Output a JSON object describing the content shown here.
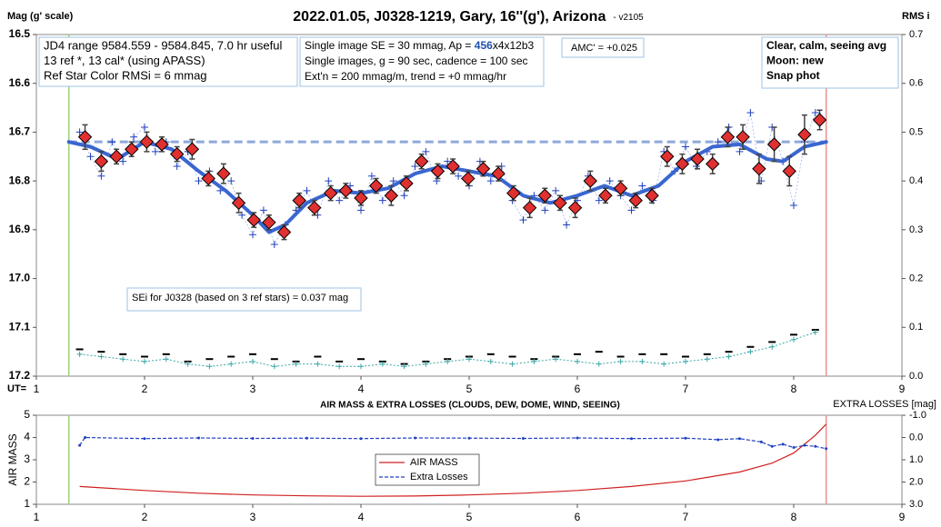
{
  "chart_data": [
    {
      "type": "lightcurve",
      "title": "2022.01.05, J0328-1219, Gary, 16''(g'), Arizona",
      "subtitle": "- v2105",
      "xlabel": "UT=",
      "ylabel": "Mag (g' scale)",
      "y2label": "RMS i",
      "xlim": [
        1,
        9
      ],
      "xticks": [
        1,
        2,
        3,
        4,
        5,
        6,
        7,
        8,
        9
      ],
      "ylim": [
        17.2,
        16.5
      ],
      "yticks": [
        16.5,
        16.6,
        16.7,
        16.8,
        16.9,
        {
          "value": 17,
          "label": "17.0"
        },
        17.1,
        17.2
      ],
      "y2lim": [
        0,
        0.7
      ],
      "y2ticks": [
        {
          "value": 0,
          "label": "0.0"
        },
        0.1,
        0.2,
        0.3,
        0.4,
        0.5,
        0.6,
        0.7
      ],
      "start_ut": 1.3,
      "end_ut": 8.3,
      "reference_level": 16.72,
      "annotations": [
        {
          "lines": [
            "JD4 range 9584.559 - 9584.845, 7.0 hr useful",
            "13 ref *, 13 cal* (using APASS)",
            "Ref Star Color RMSi = 6 mmag"
          ]
        },
        {
          "lines": [
            "Single image SE = 30 mmag, Ap = ",
            "456",
            "x4x12b3",
            "Single images, g = 90 sec, cadence = 100 sec",
            "Ext'n = 200 mmag/m, trend = +0 mmag/hr"
          ]
        },
        {
          "lines": [
            "AMC' = +0.025"
          ]
        },
        {
          "lines": [
            "Clear, calm, seeing avg",
            "Moon: new",
            "Snap phot"
          ]
        },
        {
          "lines": [
            "SEi for J0328 (based on 3 ref stars) = 0.037 mag"
          ]
        }
      ],
      "points": {
        "color": "#2040c0",
        "x": [
          1.4,
          1.5,
          1.6,
          1.7,
          1.8,
          1.9,
          2.0,
          2.1,
          2.2,
          2.3,
          2.4,
          2.5,
          2.6,
          2.7,
          2.8,
          2.9,
          3.0,
          3.1,
          3.2,
          3.3,
          3.4,
          3.5,
          3.6,
          3.7,
          3.8,
          3.9,
          4.0,
          4.1,
          4.2,
          4.3,
          4.4,
          4.5,
          4.6,
          4.7,
          4.8,
          4.9,
          5.0,
          5.1,
          5.2,
          5.3,
          5.4,
          5.5,
          5.6,
          5.7,
          5.8,
          5.9,
          6.0,
          6.1,
          6.2,
          6.3,
          6.4,
          6.5,
          6.6,
          6.7,
          6.8,
          6.9,
          7.0,
          7.1,
          7.2,
          7.3,
          7.4,
          7.5,
          7.6,
          7.7,
          7.8,
          7.9,
          8.0,
          8.1,
          8.2
        ],
        "values": [
          16.7,
          16.75,
          16.79,
          16.72,
          16.76,
          16.71,
          16.69,
          16.74,
          16.72,
          16.77,
          16.74,
          16.8,
          16.78,
          16.82,
          16.8,
          16.87,
          16.91,
          16.86,
          16.93,
          16.89,
          16.86,
          16.82,
          16.87,
          16.8,
          16.84,
          16.81,
          16.86,
          16.79,
          16.84,
          16.8,
          16.83,
          16.77,
          16.74,
          16.8,
          16.76,
          16.79,
          16.81,
          16.76,
          16.8,
          16.77,
          16.84,
          16.88,
          16.83,
          16.86,
          16.82,
          16.89,
          16.84,
          16.79,
          16.84,
          16.8,
          16.83,
          16.86,
          16.81,
          16.84,
          16.74,
          16.78,
          16.73,
          16.77,
          16.74,
          16.72,
          16.69,
          16.74,
          16.66,
          16.8,
          16.69,
          16.76,
          16.85,
          16.72,
          16.66
        ]
      },
      "binned": {
        "color": "#e03030",
        "x": [
          1.45,
          1.6,
          1.74,
          1.88,
          2.02,
          2.16,
          2.3,
          2.44,
          2.59,
          2.73,
          2.87,
          3.01,
          3.15,
          3.29,
          3.43,
          3.57,
          3.72,
          3.86,
          4.0,
          4.14,
          4.28,
          4.42,
          4.56,
          4.71,
          4.85,
          4.99,
          5.13,
          5.27,
          5.41,
          5.56,
          5.7,
          5.84,
          5.98,
          6.12,
          6.26,
          6.4,
          6.54,
          6.69,
          6.83,
          6.97,
          7.11,
          7.25,
          7.39,
          7.53,
          7.68,
          7.82,
          7.96,
          8.1,
          8.24
        ],
        "values": [
          16.71,
          16.76,
          16.75,
          16.735,
          16.72,
          16.725,
          16.745,
          16.735,
          16.795,
          16.785,
          16.845,
          16.88,
          16.885,
          16.905,
          16.84,
          16.855,
          16.825,
          16.82,
          16.835,
          16.81,
          16.83,
          16.805,
          16.76,
          16.78,
          16.77,
          16.795,
          16.775,
          16.785,
          16.825,
          16.855,
          16.83,
          16.845,
          16.855,
          16.8,
          16.83,
          16.815,
          16.84,
          16.83,
          16.75,
          16.765,
          16.755,
          16.765,
          16.71,
          16.71,
          16.775,
          16.725,
          16.78,
          16.705,
          16.675
        ],
        "errors": [
          0.025,
          0.02,
          0.015,
          0.015,
          0.02,
          0.015,
          0.015,
          0.02,
          0.015,
          0.02,
          0.02,
          0.015,
          0.015,
          0.015,
          0.015,
          0.015,
          0.015,
          0.015,
          0.015,
          0.015,
          0.02,
          0.015,
          0.015,
          0.015,
          0.015,
          0.015,
          0.015,
          0.015,
          0.015,
          0.02,
          0.015,
          0.015,
          0.02,
          0.02,
          0.015,
          0.015,
          0.015,
          0.015,
          0.02,
          0.02,
          0.02,
          0.02,
          0.02,
          0.025,
          0.03,
          0.035,
          0.03,
          0.04,
          0.02
        ]
      },
      "fit": {
        "color": "#3a66d0",
        "x": [
          1.3,
          1.5,
          1.75,
          2.0,
          2.25,
          2.5,
          2.75,
          3.0,
          3.15,
          3.3,
          3.5,
          3.75,
          4.0,
          4.25,
          4.5,
          4.75,
          5.0,
          5.25,
          5.5,
          5.75,
          6.0,
          6.25,
          6.5,
          6.75,
          7.0,
          7.25,
          7.5,
          7.75,
          7.9,
          8.1,
          8.3
        ],
        "values": [
          16.72,
          16.73,
          16.755,
          16.72,
          16.735,
          16.78,
          16.82,
          16.87,
          16.905,
          16.89,
          16.845,
          16.82,
          16.825,
          16.815,
          16.785,
          16.77,
          16.78,
          16.79,
          16.83,
          16.845,
          16.83,
          16.81,
          16.83,
          16.81,
          16.76,
          16.73,
          16.725,
          16.755,
          16.76,
          16.73,
          16.72
        ]
      },
      "rms_x": [
        1.4,
        1.6,
        1.8,
        2.0,
        2.2,
        2.4,
        2.6,
        2.8,
        3.0,
        3.2,
        3.4,
        3.6,
        3.8,
        4.0,
        4.2,
        4.4,
        4.6,
        4.8,
        5.0,
        5.2,
        5.4,
        5.6,
        5.8,
        6.0,
        6.2,
        6.4,
        6.6,
        6.8,
        7.0,
        7.2,
        7.4,
        7.6,
        7.8,
        8.0,
        8.2
      ],
      "rms_ref": {
        "color": "#000000",
        "axis": "y2",
        "values": [
          0.055,
          0.05,
          0.045,
          0.04,
          0.045,
          0.03,
          0.035,
          0.04,
          0.045,
          0.035,
          0.03,
          0.04,
          0.03,
          0.035,
          0.03,
          0.025,
          0.03,
          0.035,
          0.04,
          0.045,
          0.04,
          0.035,
          0.04,
          0.045,
          0.05,
          0.04,
          0.045,
          0.045,
          0.04,
          0.045,
          0.05,
          0.06,
          0.07,
          0.085,
          0.095
        ]
      },
      "rms_target": {
        "color": "#3aa8a8",
        "axis": "y2",
        "values": [
          0.045,
          0.04,
          0.035,
          0.03,
          0.035,
          0.025,
          0.02,
          0.025,
          0.03,
          0.02,
          0.025,
          0.025,
          0.02,
          0.02,
          0.025,
          0.02,
          0.025,
          0.03,
          0.035,
          0.03,
          0.025,
          0.03,
          0.035,
          0.03,
          0.025,
          0.03,
          0.03,
          0.025,
          0.03,
          0.035,
          0.04,
          0.05,
          0.06,
          0.075,
          0.09
        ]
      }
    },
    {
      "type": "line",
      "title": "AIR MASS & EXTRA LOSSES (CLOUDS, DEW, DOME, WIND, SEEING)",
      "ylabel": "AIR MASS",
      "y2label": "EXTRA LOSSES [mag]",
      "xlim": [
        1,
        9
      ],
      "xticks": [
        1,
        2,
        3,
        4,
        5,
        6,
        7,
        8,
        9
      ],
      "ylim": [
        1,
        5
      ],
      "yticks": [
        1,
        2,
        3,
        4,
        5
      ],
      "y2lim": [
        3,
        -1
      ],
      "y2ticks": [
        {
          "value": -1,
          "label": "-1.0"
        },
        {
          "value": 0,
          "label": "0.0"
        },
        {
          "value": 1,
          "label": "1.0"
        },
        {
          "value": 2,
          "label": "2.0"
        },
        {
          "value": 3,
          "label": "3.0"
        }
      ],
      "start_ut": 1.3,
      "end_ut": 8.3,
      "legend": "center",
      "series": [
        {
          "name": "AIR MASS",
          "color": "#d02020",
          "x": [
            1.4,
            2.0,
            2.5,
            3.0,
            3.5,
            4.0,
            4.5,
            5.0,
            5.5,
            6.0,
            6.5,
            7.0,
            7.5,
            7.8,
            8.0,
            8.2,
            8.3
          ],
          "values": [
            1.8,
            1.62,
            1.5,
            1.42,
            1.38,
            1.36,
            1.37,
            1.42,
            1.5,
            1.62,
            1.8,
            2.05,
            2.45,
            2.85,
            3.3,
            4.1,
            4.6
          ]
        },
        {
          "name": "Extra Losses",
          "color": "#2040c0",
          "axis": "y2",
          "x": [
            1.4,
            1.45,
            2,
            2.5,
            3,
            3.5,
            4,
            4.5,
            5,
            5.5,
            6,
            6.5,
            7,
            7.3,
            7.5,
            7.7,
            7.8,
            7.9,
            8.0,
            8.1,
            8.2,
            8.3
          ],
          "values": [
            0.35,
            0,
            0.05,
            0.02,
            0.04,
            0.03,
            0.05,
            0.02,
            0.03,
            0.04,
            0.02,
            0.05,
            0.03,
            0.1,
            0.05,
            0.2,
            0.4,
            0.3,
            0.45,
            0.35,
            0.4,
            0.5
          ]
        }
      ]
    }
  ]
}
